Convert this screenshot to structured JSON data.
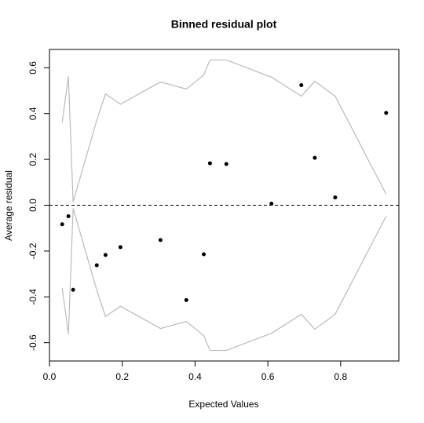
{
  "chart_data": {
    "type": "scatter",
    "title": "Binned residual plot",
    "xlabel": "Expected Values",
    "ylabel": "Average residual",
    "xlim": [
      0,
      0.96
    ],
    "ylim": [
      -0.68,
      0.68
    ],
    "xticks": [
      {
        "value": 0,
        "label": "0.0"
      },
      0.2,
      0.4,
      0.6,
      0.8
    ],
    "yticks": [
      -0.6,
      -0.4,
      -0.2,
      {
        "value": 0,
        "label": "0.0"
      },
      0.2,
      0.4,
      0.6
    ],
    "hline": 0,
    "series": [
      {
        "mode": "markers",
        "color": "#000000",
        "x": [
          0.035,
          0.052,
          0.065,
          0.13,
          0.154,
          0.195,
          0.305,
          0.376,
          0.424,
          0.441,
          0.486,
          0.61,
          0.692,
          0.729,
          0.785,
          0.925
        ],
        "values": [
          -0.083,
          -0.048,
          -0.369,
          -0.262,
          -0.217,
          -0.183,
          -0.152,
          -0.414,
          -0.214,
          0.183,
          0.18,
          0.007,
          0.524,
          0.207,
          0.034,
          0.403
        ]
      },
      {
        "mode": "lines",
        "color": "#bbbbbb",
        "x": [
          0.035,
          0.052,
          0.065,
          0.13,
          0.154,
          0.195,
          0.305,
          0.376,
          0.424,
          0.441,
          0.486,
          0.61,
          0.692,
          0.729,
          0.785,
          0.925
        ],
        "values": [
          0.362,
          0.562,
          0.014,
          0.371,
          0.486,
          0.441,
          0.538,
          0.507,
          0.569,
          0.634,
          0.634,
          0.559,
          0.476,
          0.541,
          0.476,
          0.048
        ]
      },
      {
        "mode": "lines",
        "color": "#bbbbbb",
        "x": [
          0.035,
          0.052,
          0.065,
          0.13,
          0.154,
          0.195,
          0.305,
          0.376,
          0.424,
          0.441,
          0.486,
          0.61,
          0.692,
          0.729,
          0.785,
          0.925
        ],
        "values": [
          -0.362,
          -0.562,
          -0.014,
          -0.371,
          -0.486,
          -0.441,
          -0.538,
          -0.507,
          -0.569,
          -0.634,
          -0.634,
          -0.559,
          -0.476,
          -0.541,
          -0.476,
          -0.048
        ]
      }
    ]
  }
}
